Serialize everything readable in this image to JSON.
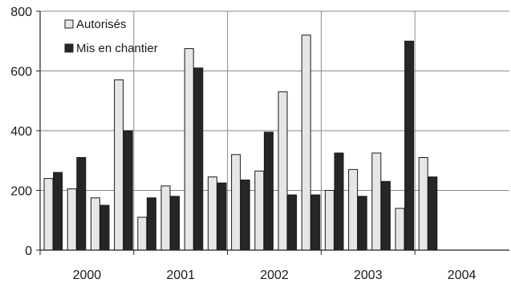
{
  "chart_data": {
    "type": "bar",
    "title": "",
    "xlabel": "",
    "ylabel": "",
    "ylim": [
      0,
      800
    ],
    "yticks": [
      0,
      200,
      400,
      600,
      800
    ],
    "year_labels": [
      "2000",
      "2001",
      "2002",
      "2003",
      "2004"
    ],
    "periods_per_year": 4,
    "grid": true,
    "legend_position": "top-left",
    "series": [
      {
        "name": "Autorisés",
        "color": "#e6e6e6",
        "values": [
          240,
          205,
          175,
          570,
          110,
          215,
          675,
          245,
          320,
          265,
          530,
          720,
          200,
          270,
          325,
          140,
          310
        ]
      },
      {
        "name": "Mis en chantier",
        "color": "#262626",
        "values": [
          260,
          310,
          150,
          400,
          175,
          180,
          610,
          225,
          235,
          395,
          185,
          185,
          325,
          180,
          230,
          700,
          245
        ]
      }
    ]
  }
}
